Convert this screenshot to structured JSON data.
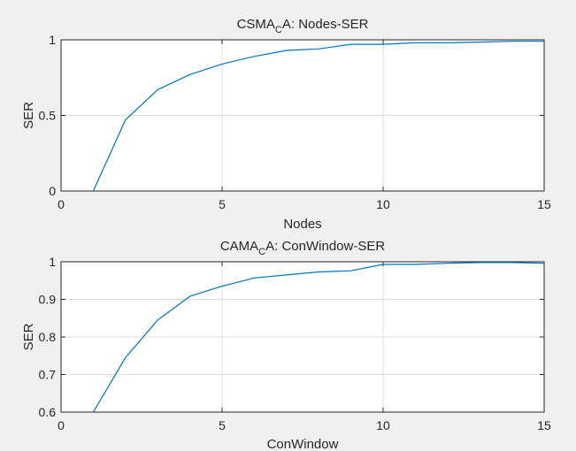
{
  "figure": {
    "background": "#f0f0f0",
    "axes_background": "#ffffff",
    "line_color": "#0072bd",
    "grid_color": "#dfdfdf",
    "axis_color": "#262626"
  },
  "chart_data": [
    {
      "type": "line",
      "title": {
        "main": "CSMA",
        "sub": "C",
        "rest": "A: Nodes-SER"
      },
      "xlabel": "Nodes",
      "ylabel": "SER",
      "xlim": [
        0,
        15
      ],
      "ylim": [
        0,
        1
      ],
      "grid": true,
      "xticks": [
        0,
        5,
        10,
        15
      ],
      "yticks": [
        0,
        0.5,
        1
      ],
      "xtick_labels": [
        "0",
        "5",
        "10",
        "15"
      ],
      "ytick_labels": [
        "0",
        "0.5",
        "1"
      ],
      "series": [
        {
          "name": "SER",
          "x": [
            1,
            2,
            3,
            4,
            5,
            6,
            7,
            8,
            9,
            10,
            11,
            12,
            13,
            14,
            15
          ],
          "y": [
            0,
            0.47,
            0.67,
            0.77,
            0.84,
            0.89,
            0.93,
            0.94,
            0.97,
            0.97,
            0.98,
            0.98,
            0.985,
            0.99,
            0.99
          ]
        }
      ]
    },
    {
      "type": "line",
      "title": {
        "main": "CAMA",
        "sub": "C",
        "rest": "A: ConWindow-SER"
      },
      "xlabel": "ConWindow",
      "ylabel": "SER",
      "xlim": [
        0,
        15
      ],
      "ylim": [
        0.6,
        1
      ],
      "grid": true,
      "xticks": [
        0,
        5,
        10,
        15
      ],
      "yticks": [
        0.6,
        0.7,
        0.8,
        0.9,
        1
      ],
      "xtick_labels": [
        "0",
        "5",
        "10",
        "15"
      ],
      "ytick_labels": [
        "0.6",
        "0.7",
        "0.8",
        "0.9",
        "1"
      ],
      "series": [
        {
          "name": "SER",
          "x": [
            1,
            2,
            3,
            4,
            5,
            6,
            7,
            8,
            9,
            10,
            11,
            12,
            13,
            14,
            15
          ],
          "y": [
            0.6,
            0.745,
            0.845,
            0.908,
            0.935,
            0.957,
            0.965,
            0.973,
            0.976,
            0.993,
            0.993,
            0.996,
            0.998,
            0.998,
            0.996
          ]
        }
      ]
    }
  ]
}
